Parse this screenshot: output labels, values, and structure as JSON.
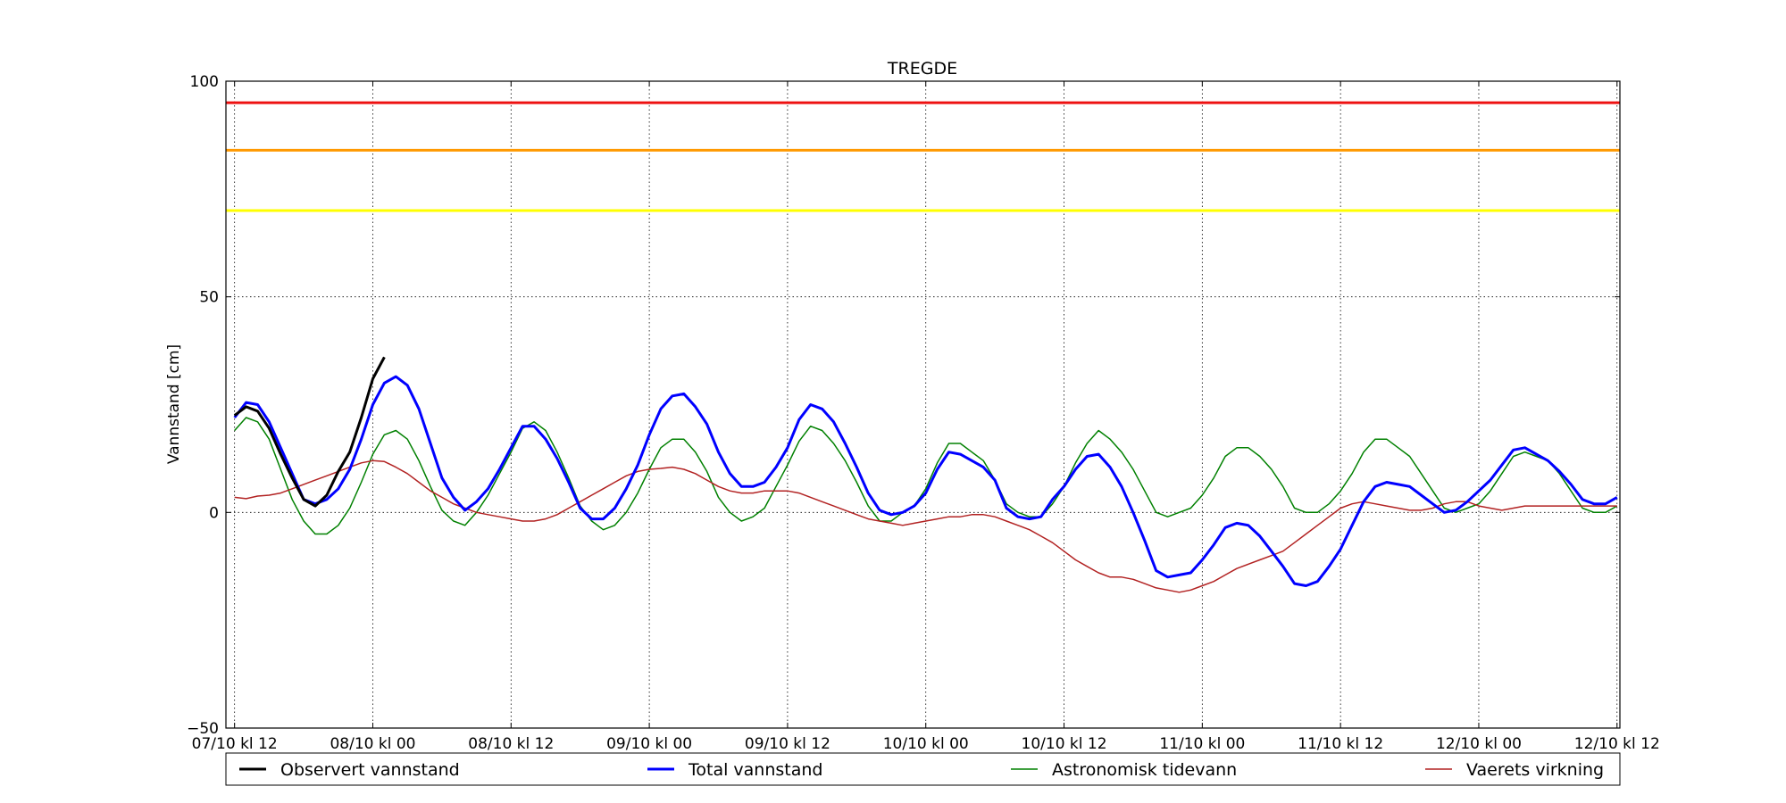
{
  "chart_data": {
    "type": "line",
    "title": "TREGDE",
    "ylabel": "Vannstand [cm]",
    "xlabel": "",
    "ylim": [
      -50,
      100
    ],
    "xlim": [
      -0.75,
      120.25
    ],
    "x_unit": "hours from 07/10 kl 12",
    "grid": true,
    "legend_position": "below",
    "yticks": [
      {
        "value": -50,
        "label": "−50"
      },
      {
        "value": 0,
        "label": "0"
      },
      {
        "value": 50,
        "label": "50"
      },
      {
        "value": 100,
        "label": "100"
      }
    ],
    "xticks": [
      {
        "value": 0,
        "label": "07/10 kl 12"
      },
      {
        "value": 12,
        "label": "08/10 kl 00"
      },
      {
        "value": 24,
        "label": "08/10 kl 12"
      },
      {
        "value": 36,
        "label": "09/10 kl 00"
      },
      {
        "value": 48,
        "label": "09/10 kl 12"
      },
      {
        "value": 60,
        "label": "10/10 kl 00"
      },
      {
        "value": 72,
        "label": "10/10 kl 12"
      },
      {
        "value": 84,
        "label": "11/10 kl 00"
      },
      {
        "value": 96,
        "label": "11/10 kl 12"
      },
      {
        "value": 108,
        "label": "12/10 kl 00"
      },
      {
        "value": 120,
        "label": "12/10 kl 12"
      }
    ],
    "thresholds": [
      {
        "value": 95,
        "color": "#ee1111"
      },
      {
        "value": 84,
        "color": "#ff9900"
      },
      {
        "value": 70,
        "color": "#ffff00"
      }
    ],
    "series": [
      {
        "name": "Observert vannstand",
        "color": "#000000",
        "width": 3,
        "x": [
          0,
          1,
          2,
          3,
          4,
          5,
          6,
          7,
          8,
          9,
          10,
          11,
          12,
          13
        ],
        "values": [
          22.5,
          24.5,
          23.5,
          19.5,
          13.5,
          8,
          3,
          1.5,
          4,
          9.5,
          14,
          22,
          31,
          36
        ]
      },
      {
        "name": "Total vannstand",
        "color": "#0000ff",
        "width": 3,
        "x": [
          0,
          1,
          2,
          3,
          4,
          5,
          6,
          7,
          8,
          9,
          10,
          11,
          12,
          13,
          14,
          15,
          16,
          17,
          18,
          19,
          20,
          21,
          22,
          23,
          24,
          25,
          26,
          27,
          28,
          29,
          30,
          31,
          32,
          33,
          34,
          35,
          36,
          37,
          38,
          39,
          40,
          41,
          42,
          43,
          44,
          45,
          46,
          47,
          48,
          49,
          50,
          51,
          52,
          53,
          54,
          55,
          56,
          57,
          58,
          59,
          60,
          61,
          62,
          63,
          64,
          65,
          66,
          67,
          68,
          69,
          70,
          71,
          72,
          73,
          74,
          75,
          76,
          77,
          78,
          79,
          80,
          81,
          82,
          83,
          84,
          85,
          86,
          87,
          88,
          89,
          90,
          91,
          92,
          93,
          94,
          95,
          96,
          97,
          98,
          99,
          100,
          101,
          102,
          103,
          104,
          105,
          106,
          107,
          108,
          109,
          110,
          111,
          112,
          113,
          114,
          115,
          116,
          117,
          118,
          119,
          120
        ],
        "values": [
          22,
          25.5,
          25,
          21,
          15,
          9,
          3,
          2,
          3,
          5.5,
          10,
          17,
          25,
          30,
          31.5,
          29.5,
          24,
          16,
          8,
          3.5,
          0.5,
          2.5,
          5.5,
          10,
          15,
          20,
          20,
          17,
          12.5,
          7,
          1,
          -1.5,
          -1.5,
          1,
          5.5,
          11,
          18,
          24,
          27,
          27.5,
          24.5,
          20.5,
          14,
          9,
          6,
          6,
          7,
          10.5,
          15,
          21.5,
          25,
          24,
          21,
          16,
          10.5,
          4.5,
          0.5,
          -0.5,
          0,
          1.5,
          4.5,
          10,
          14,
          13.5,
          12,
          10.5,
          7.5,
          1,
          -1,
          -1.5,
          -1,
          3,
          6,
          10,
          13,
          13.5,
          10.5,
          6,
          0,
          -6.5,
          -13.5,
          -15,
          -14.5,
          -14,
          -11,
          -7.5,
          -3.5,
          -2.5,
          -3,
          -5.5,
          -9,
          -12.5,
          -16.5,
          -17,
          -16,
          -12.5,
          -8.5,
          -3,
          2.5,
          6,
          7,
          6.5,
          6,
          4,
          2,
          0,
          0.5,
          2.5,
          5,
          7.5,
          11,
          14.5,
          15,
          13.5,
          12,
          9.5,
          6.5,
          3,
          2,
          2,
          3.5
        ]
      },
      {
        "name": "Astronomisk tidevann",
        "color": "#008000",
        "width": 1.5,
        "x": [
          0,
          1,
          2,
          3,
          4,
          5,
          6,
          7,
          8,
          9,
          10,
          11,
          12,
          13,
          14,
          15,
          16,
          17,
          18,
          19,
          20,
          21,
          22,
          23,
          24,
          25,
          26,
          27,
          28,
          29,
          30,
          31,
          32,
          33,
          34,
          35,
          36,
          37,
          38,
          39,
          40,
          41,
          42,
          43,
          44,
          45,
          46,
          47,
          48,
          49,
          50,
          51,
          52,
          53,
          54,
          55,
          56,
          57,
          58,
          59,
          60,
          61,
          62,
          63,
          64,
          65,
          66,
          67,
          68,
          69,
          70,
          71,
          72,
          73,
          74,
          75,
          76,
          77,
          78,
          79,
          80,
          81,
          82,
          83,
          84,
          85,
          86,
          87,
          88,
          89,
          90,
          91,
          92,
          93,
          94,
          95,
          96,
          97,
          98,
          99,
          100,
          101,
          102,
          103,
          104,
          105,
          106,
          107,
          108,
          109,
          110,
          111,
          112,
          113,
          114,
          115,
          116,
          117,
          118,
          119,
          120
        ],
        "values": [
          19,
          22,
          21,
          17,
          10,
          3,
          -2,
          -5,
          -5,
          -3,
          1,
          7,
          13.5,
          18,
          19,
          17,
          12,
          6,
          0.5,
          -2,
          -3,
          0,
          4,
          9,
          14,
          19.5,
          21,
          19,
          14,
          8,
          1.5,
          -2,
          -4,
          -3,
          0,
          4.5,
          10,
          15,
          17,
          17,
          14,
          9.5,
          3.5,
          0,
          -2,
          -1,
          1,
          6,
          11,
          16.5,
          20,
          19,
          16,
          12,
          7,
          1.5,
          -2,
          -2,
          0,
          1.5,
          5.5,
          11.5,
          16,
          16,
          14,
          12,
          7.5,
          2,
          0,
          -1,
          -1,
          2,
          6,
          11.5,
          16,
          19,
          17,
          14,
          10,
          5,
          0,
          -1,
          0,
          1,
          4,
          8,
          13,
          15,
          15,
          13,
          10,
          6,
          1,
          0,
          0,
          2,
          5,
          9,
          14,
          17,
          17,
          15,
          13,
          9,
          5,
          1,
          0,
          1,
          2,
          5,
          9,
          13,
          14,
          13,
          12,
          9,
          5,
          1,
          0,
          0,
          1.5
        ]
      },
      {
        "name": "Vaerets virkning",
        "color": "#b22222",
        "width": 1.5,
        "x": [
          0,
          1,
          2,
          3,
          4,
          5,
          6,
          7,
          8,
          9,
          10,
          11,
          12,
          13,
          14,
          15,
          16,
          17,
          18,
          19,
          20,
          21,
          22,
          23,
          24,
          25,
          26,
          27,
          28,
          29,
          30,
          31,
          32,
          33,
          34,
          35,
          36,
          37,
          38,
          39,
          40,
          41,
          42,
          43,
          44,
          45,
          46,
          47,
          48,
          49,
          50,
          51,
          52,
          53,
          54,
          55,
          56,
          57,
          58,
          59,
          60,
          61,
          62,
          63,
          64,
          65,
          66,
          67,
          68,
          69,
          70,
          71,
          72,
          73,
          74,
          75,
          76,
          77,
          78,
          79,
          80,
          81,
          82,
          83,
          84,
          85,
          86,
          87,
          88,
          89,
          90,
          91,
          92,
          93,
          94,
          95,
          96,
          97,
          98,
          99,
          100,
          101,
          102,
          103,
          104,
          105,
          106,
          107,
          108,
          109,
          110,
          111,
          112,
          113,
          114,
          115,
          116,
          117,
          118,
          119,
          120
        ],
        "values": [
          3.5,
          3.2,
          3.8,
          4,
          4.5,
          5.5,
          6.5,
          7.5,
          8.5,
          9.5,
          10.5,
          11.5,
          12,
          11.8,
          10.5,
          9,
          7,
          5,
          3.5,
          2,
          1,
          0,
          -0.5,
          -1,
          -1.5,
          -2,
          -2,
          -1.5,
          -0.5,
          1,
          2.5,
          4,
          5.5,
          7,
          8.5,
          9.5,
          10,
          10.2,
          10.5,
          10,
          9,
          7.5,
          6,
          5,
          4.5,
          4.5,
          5,
          5,
          5,
          4.5,
          3.5,
          2.5,
          1.5,
          0.5,
          -0.5,
          -1.5,
          -2,
          -2.5,
          -3,
          -2.5,
          -2,
          -1.5,
          -1,
          -1,
          -0.5,
          -0.5,
          -1,
          -2,
          -3,
          -4,
          -5.5,
          -7,
          -9,
          -11,
          -12.5,
          -14,
          -15,
          -15,
          -15.5,
          -16.5,
          -17.5,
          -18,
          -18.5,
          -18,
          -17,
          -16,
          -14.5,
          -13,
          -12,
          -11,
          -10,
          -9,
          -7,
          -5,
          -3,
          -1,
          1,
          2,
          2.5,
          2,
          1.5,
          1,
          0.5,
          0.5,
          1,
          2,
          2.5,
          2.5,
          1.5,
          1,
          0.5,
          1,
          1.5,
          1.5,
          1.5,
          1.5,
          1.5,
          1.5,
          1.5,
          1.5,
          1.5
        ]
      }
    ]
  }
}
